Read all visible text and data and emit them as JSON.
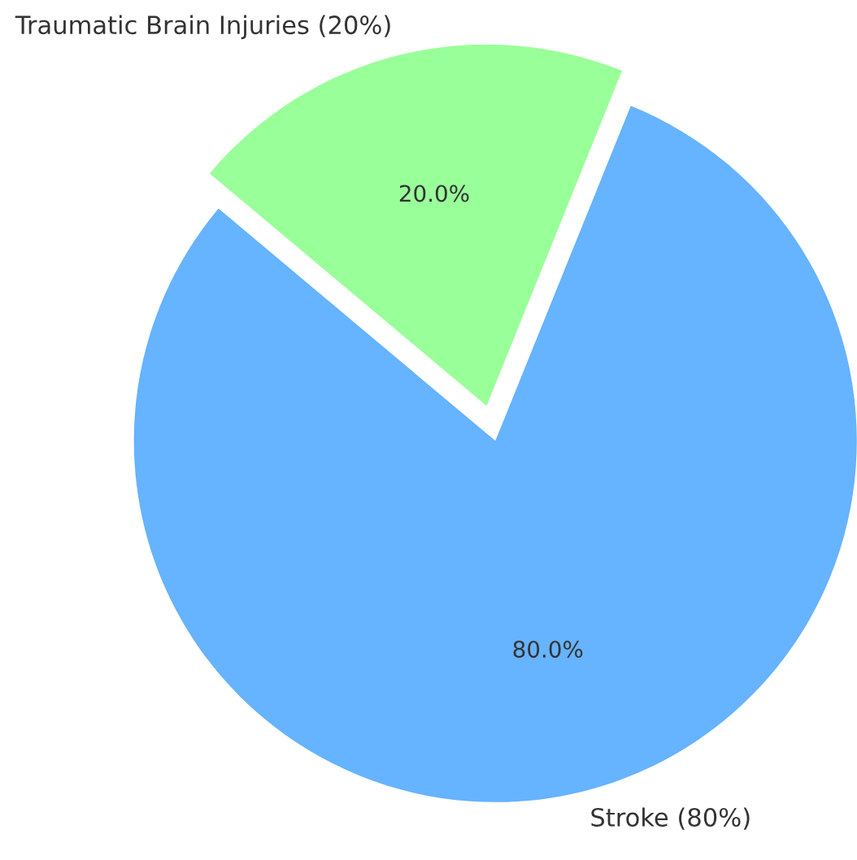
{
  "chart_data": {
    "type": "pie",
    "categories": [
      "Stroke (80%)",
      "Traumatic Brain Injuries (20%)"
    ],
    "values": [
      80,
      20
    ],
    "colors": [
      "#66b3ff",
      "#99ff99"
    ],
    "value_labels": [
      "80.0%",
      "20.0%"
    ]
  }
}
